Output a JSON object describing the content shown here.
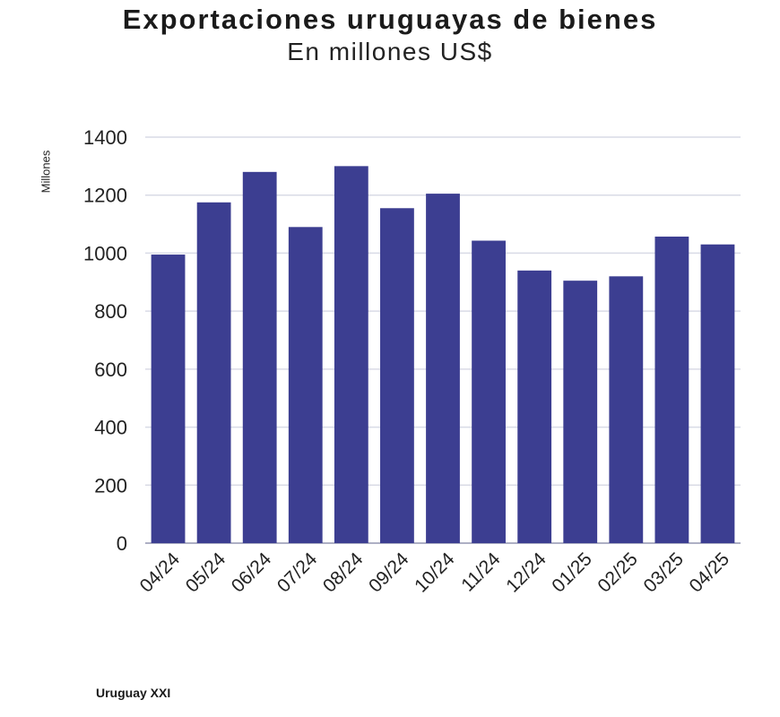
{
  "chart_data": {
    "type": "bar",
    "title": "Exportaciones uruguayas de bienes",
    "subtitle": "En millones US$",
    "ylabel": "Millones",
    "xlabel": "",
    "categories": [
      "04/24",
      "05/24",
      "06/24",
      "07/24",
      "08/24",
      "09/24",
      "10/24",
      "11/24",
      "12/24",
      "01/25",
      "02/25",
      "03/25",
      "04/25"
    ],
    "values": [
      995,
      1175,
      1280,
      1090,
      1300,
      1155,
      1205,
      1043,
      940,
      905,
      920,
      1057,
      1030
    ],
    "ylim": [
      0,
      1400
    ],
    "yticks": [
      0,
      200,
      400,
      600,
      800,
      1000,
      1200,
      1400
    ],
    "grid": true,
    "bar_color": "#3c3e91",
    "grid_color": "#d9dbe6"
  },
  "source": "Uruguay XXI"
}
